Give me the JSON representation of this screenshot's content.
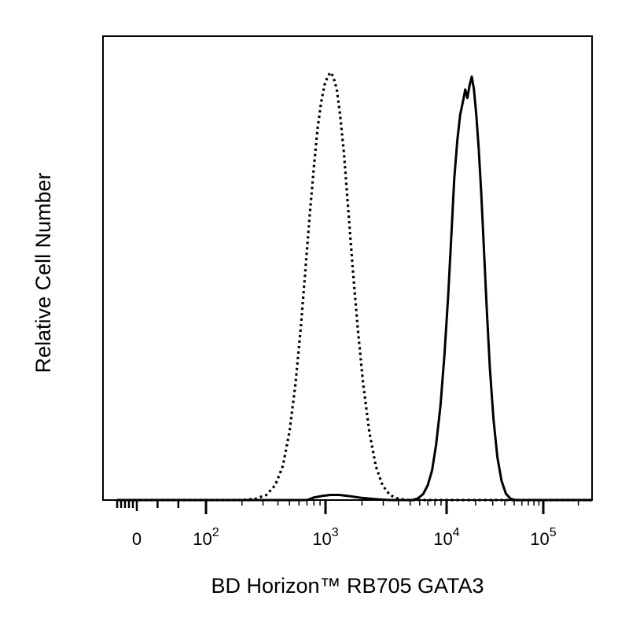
{
  "chart_data": {
    "type": "line",
    "xlabel": "BD Horizon™ RB705 GATA3",
    "ylabel": "Relative Cell Number",
    "x_scale": "biexponential",
    "x_ticks": [
      {
        "value": 0,
        "base": "0",
        "exp": ""
      },
      {
        "value": 100,
        "base": "10",
        "exp": "2"
      },
      {
        "value": 1000,
        "base": "10",
        "exp": "3"
      },
      {
        "value": 10000,
        "base": "10",
        "exp": "4"
      },
      {
        "value": 100000,
        "base": "10",
        "exp": "5"
      }
    ],
    "xlim": [
      -150,
      262000
    ],
    "ylim": [
      0,
      1.0
    ],
    "grid": false,
    "legend": "none",
    "series": [
      {
        "style": "dotted",
        "color": "#000000",
        "points": [
          [
            -150,
            0
          ],
          [
            200,
            0
          ],
          [
            260,
            0.003
          ],
          [
            320,
            0.012
          ],
          [
            380,
            0.035
          ],
          [
            440,
            0.08
          ],
          [
            500,
            0.16
          ],
          [
            560,
            0.27
          ],
          [
            620,
            0.4
          ],
          [
            680,
            0.54
          ],
          [
            740,
            0.67
          ],
          [
            800,
            0.78
          ],
          [
            860,
            0.87
          ],
          [
            920,
            0.93
          ],
          [
            980,
            0.97
          ],
          [
            1040,
            0.99
          ],
          [
            1100,
            1.0
          ],
          [
            1160,
            0.99
          ],
          [
            1240,
            0.96
          ],
          [
            1320,
            0.9
          ],
          [
            1420,
            0.81
          ],
          [
            1540,
            0.68
          ],
          [
            1680,
            0.54
          ],
          [
            1850,
            0.4
          ],
          [
            2050,
            0.27
          ],
          [
            2300,
            0.16
          ],
          [
            2600,
            0.08
          ],
          [
            2950,
            0.035
          ],
          [
            3400,
            0.012
          ],
          [
            4000,
            0.003
          ],
          [
            4800,
            0
          ],
          [
            262000,
            0
          ]
        ]
      },
      {
        "style": "solid",
        "color": "#000000",
        "points": [
          [
            -150,
            0
          ],
          [
            700,
            0
          ],
          [
            800,
            0.006
          ],
          [
            950,
            0.01
          ],
          [
            1100,
            0.012
          ],
          [
            1300,
            0.012
          ],
          [
            1600,
            0.009
          ],
          [
            2000,
            0.005
          ],
          [
            2600,
            0.002
          ],
          [
            3400,
            0
          ],
          [
            5200,
            0
          ],
          [
            5800,
            0.004
          ],
          [
            6400,
            0.014
          ],
          [
            7000,
            0.035
          ],
          [
            7600,
            0.07
          ],
          [
            8200,
            0.13
          ],
          [
            8900,
            0.22
          ],
          [
            9600,
            0.34
          ],
          [
            10400,
            0.48
          ],
          [
            11200,
            0.62
          ],
          [
            12000,
            0.75
          ],
          [
            12900,
            0.84
          ],
          [
            13800,
            0.9
          ],
          [
            14700,
            0.93
          ],
          [
            15600,
            0.96
          ],
          [
            16400,
            0.94
          ],
          [
            17300,
            0.97
          ],
          [
            18200,
            0.99
          ],
          [
            19200,
            0.96
          ],
          [
            20300,
            0.9
          ],
          [
            21500,
            0.82
          ],
          [
            22800,
            0.72
          ],
          [
            24300,
            0.59
          ],
          [
            26000,
            0.45
          ],
          [
            28000,
            0.31
          ],
          [
            30500,
            0.19
          ],
          [
            33500,
            0.1
          ],
          [
            37000,
            0.045
          ],
          [
            41000,
            0.015
          ],
          [
            46000,
            0.003
          ],
          [
            52000,
            0
          ],
          [
            262000,
            0
          ]
        ]
      }
    ]
  }
}
